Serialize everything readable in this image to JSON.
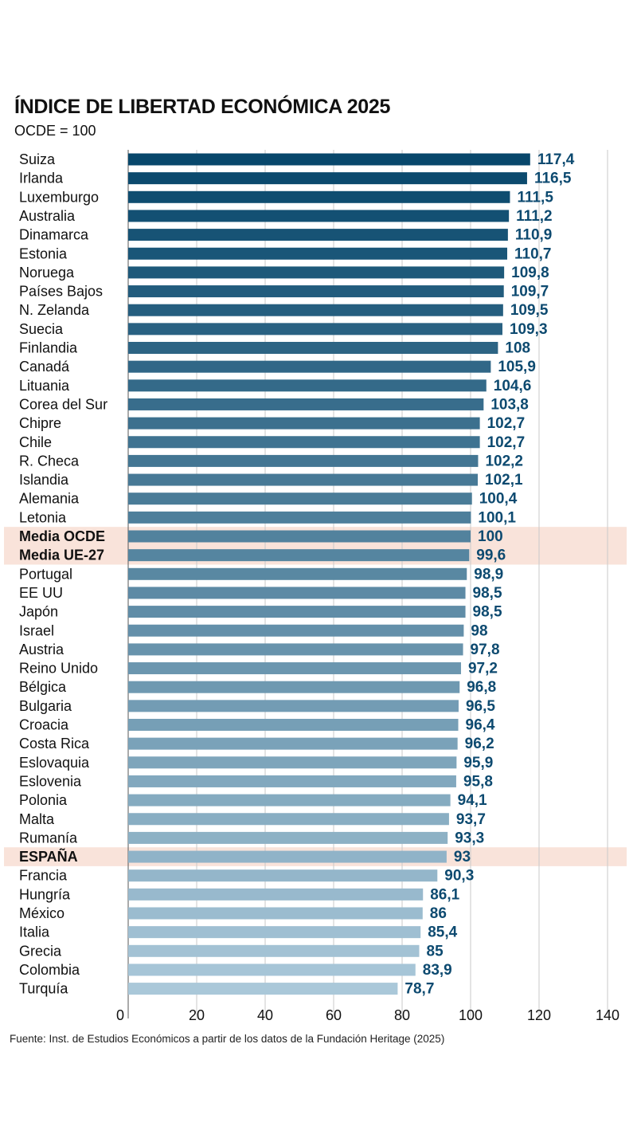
{
  "title": "ÍNDICE DE LIBERTAD ECONÓMICA 2025",
  "subtitle": "OCDE = 100",
  "source": "Fuente: Inst. de Estudios Económicos a partir de los datos de la Fundación Heritage (2025)",
  "colors": {
    "bar_dark": "#08476b",
    "bar_light": "#aac8d9",
    "value_label": "#0d4a70",
    "highlight_band": "#f9e3da",
    "gridline": "#c9c9c9"
  },
  "chart_data": {
    "type": "bar",
    "orientation": "horizontal",
    "xlim": [
      0,
      140
    ],
    "xticks": [
      "0",
      "20",
      "40",
      "60",
      "80",
      "100",
      "120",
      "140"
    ],
    "grid": true,
    "highlighted": [
      "Media OCDE",
      "Media UE-27",
      "ESPAÑA"
    ],
    "bold_labels": [
      "Media OCDE",
      "Media UE-27",
      "ESPAÑA"
    ],
    "categories": [
      "Suiza",
      "Irlanda",
      "Luxemburgo",
      "Australia",
      "Dinamarca",
      "Estonia",
      "Noruega",
      "Países Bajos",
      "N. Zelanda",
      "Suecia",
      "Finlandia",
      "Canadá",
      "Lituania",
      "Corea del Sur",
      "Chipre",
      "Chile",
      "R. Checa",
      "Islandia",
      "Alemania",
      "Letonia",
      "Media OCDE",
      "Media UE-27",
      "Portugal",
      "EE UU",
      "Japón",
      "Israel",
      "Austria",
      "Reino Unido",
      "Bélgica",
      "Bulgaria",
      "Croacia",
      "Costa Rica",
      "Eslovaquia",
      "Eslovenia",
      "Polonia",
      "Malta",
      "Rumanía",
      "ESPAÑA",
      "Francia",
      "Hungría",
      "México",
      "Italia",
      "Grecia",
      "Colombia",
      "Turquía"
    ],
    "values": [
      117.4,
      116.5,
      111.5,
      111.2,
      110.9,
      110.7,
      109.8,
      109.7,
      109.5,
      109.3,
      108,
      105.9,
      104.6,
      103.8,
      102.7,
      102.7,
      102.2,
      102.1,
      100.4,
      100.1,
      100,
      99.6,
      98.9,
      98.5,
      98.5,
      98,
      97.8,
      97.2,
      96.8,
      96.5,
      96.4,
      96.2,
      95.9,
      95.8,
      94.1,
      93.7,
      93.3,
      93,
      90.3,
      86.1,
      86,
      85.4,
      85,
      83.9,
      78.7
    ],
    "value_labels": [
      "117,4",
      "116,5",
      "111,5",
      "111,2",
      "110,9",
      "110,7",
      "109,8",
      "109,7",
      "109,5",
      "109,3",
      "108",
      "105,9",
      "104,6",
      "103,8",
      "102,7",
      "102,7",
      "102,2",
      "102,1",
      "100,4",
      "100,1",
      "100",
      "99,6",
      "98,9",
      "98,5",
      "98,5",
      "98",
      "97,8",
      "97,2",
      "96,8",
      "96,5",
      "96,4",
      "96,2",
      "95,9",
      "95,8",
      "94,1",
      "93,7",
      "93,3",
      "93",
      "90,3",
      "86,1",
      "86",
      "85,4",
      "85",
      "83,9",
      "78,7"
    ]
  }
}
